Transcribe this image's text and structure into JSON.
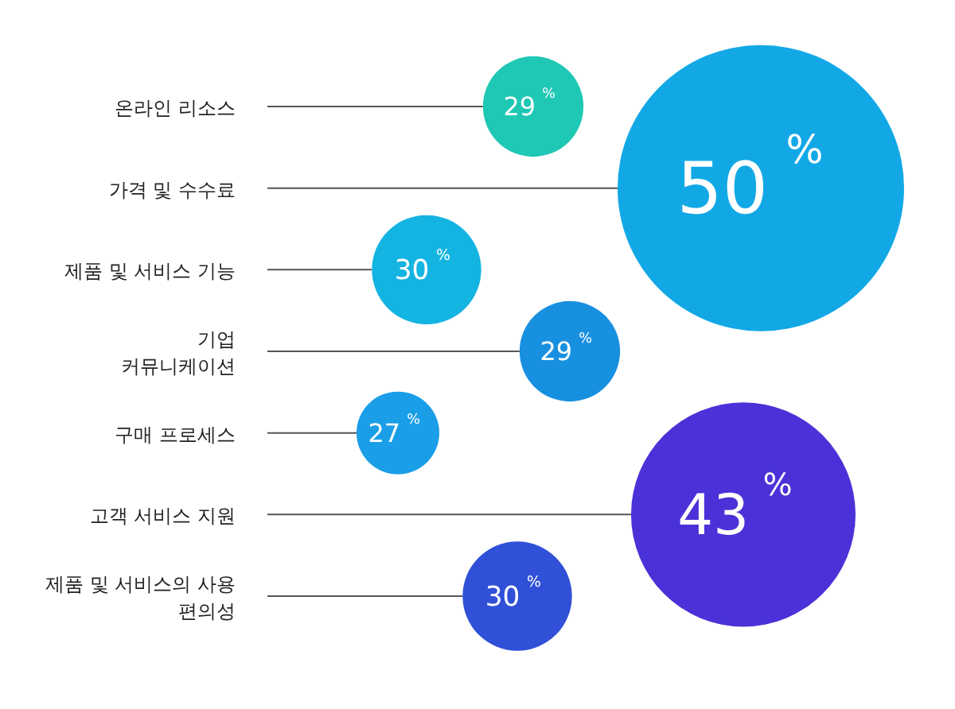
{
  "chart_data": {
    "type": "other",
    "categories": [
      "온라인 리소스",
      "가격 및 수수료",
      "제품 및 서비스 기능",
      "기업\n커뮤니케이션",
      "구매 프로세스",
      "고객 서비스 지원",
      "제품 및 서비스의 사용\n편의성"
    ],
    "values": [
      29,
      50,
      30,
      29,
      27,
      43,
      30
    ],
    "value_labels": [
      "29$^{%}$",
      "50$^{%}$",
      "30$^{%}$",
      "29$^{%}$",
      "27$^{%}$",
      "43$^{%}$",
      "30$^{%}$"
    ],
    "colors": [
      "#1ec8b4",
      "#12a8e6",
      "#14b4e2",
      "#1890e0",
      "#1a9ee8",
      "#4a32d8",
      "#3050d8"
    ]
  }
}
